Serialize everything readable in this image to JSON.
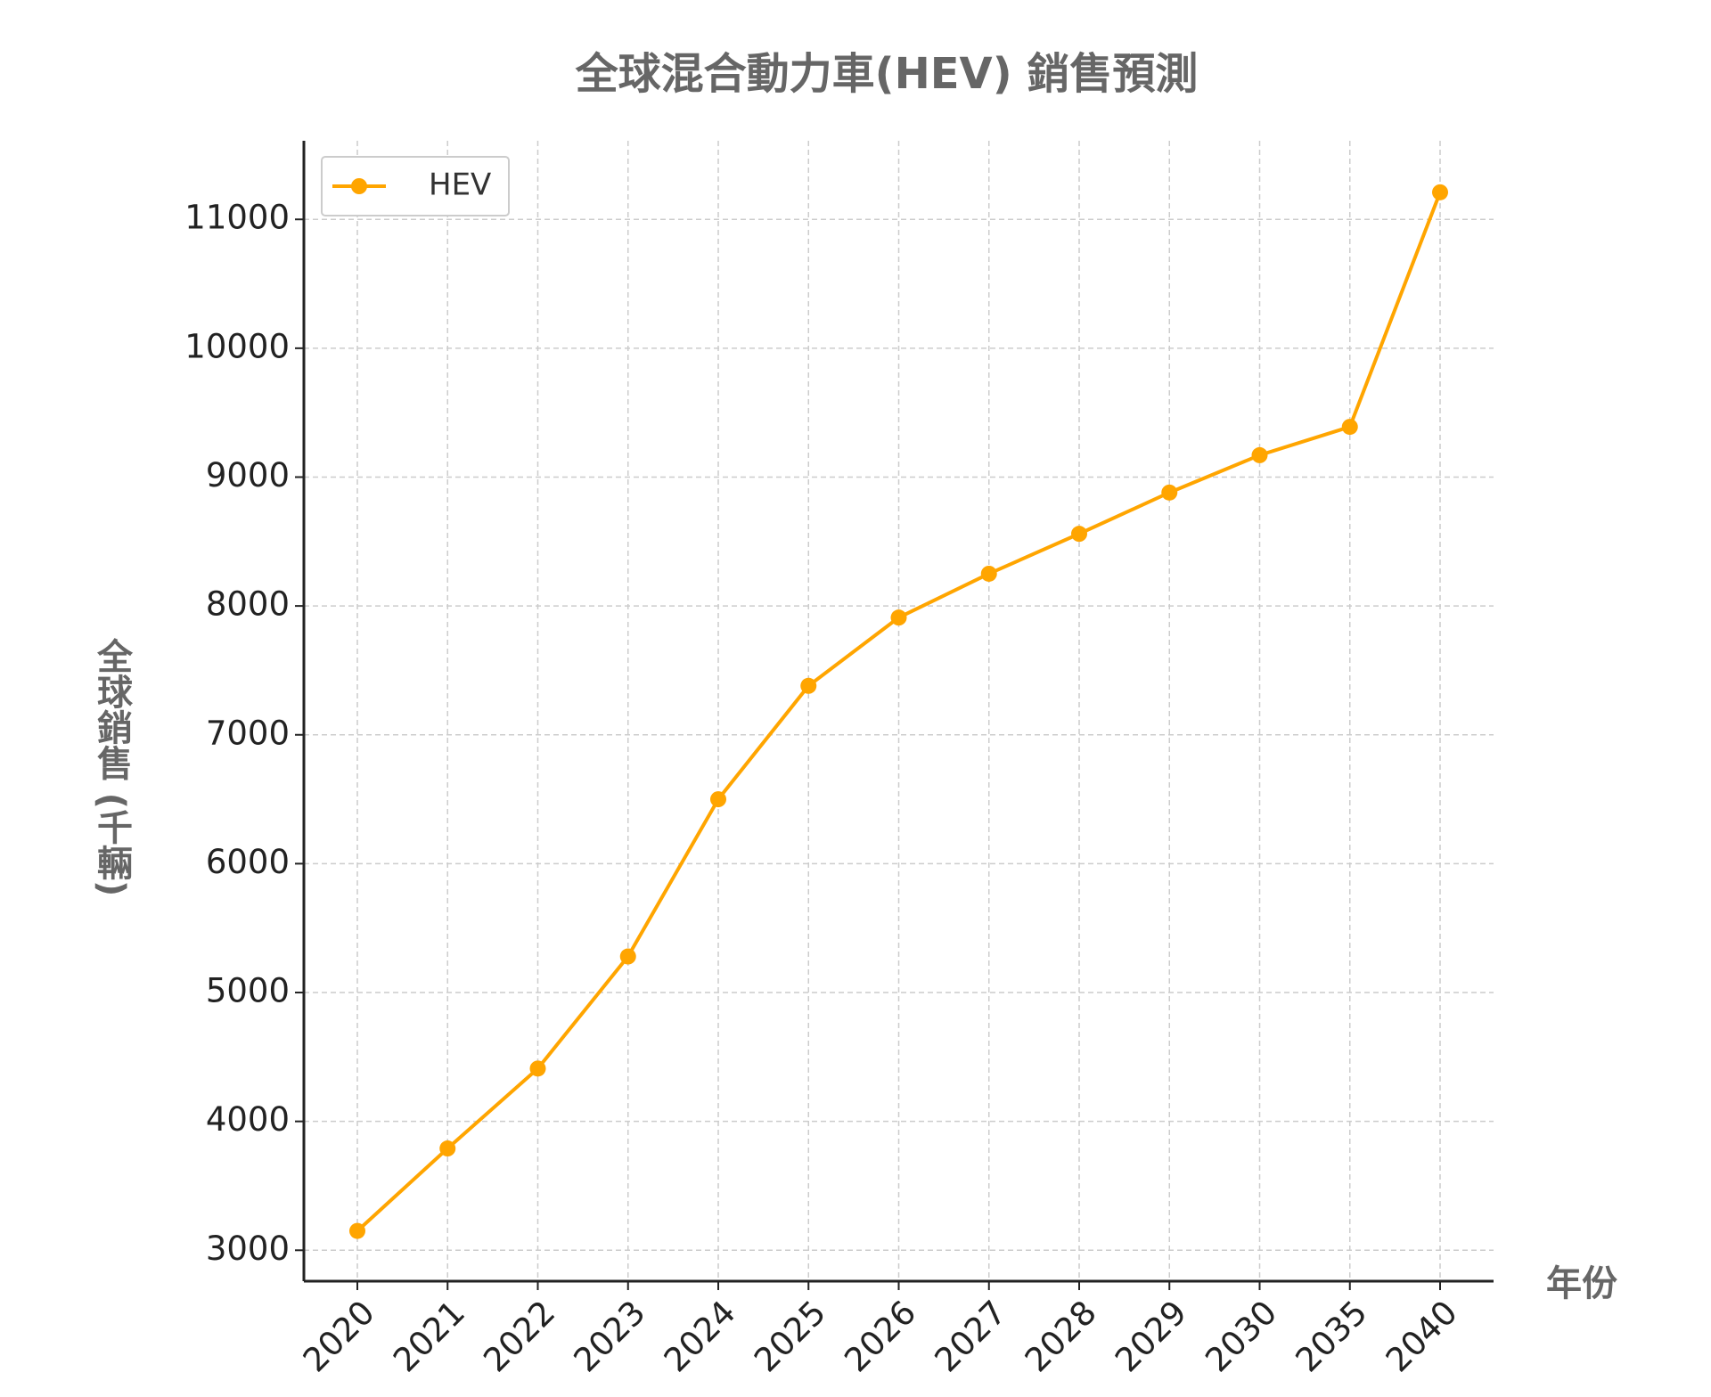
{
  "chart_data": {
    "type": "line",
    "title": "全球混合動力車(HEV) 銷售預測",
    "x_label": "年份",
    "y_label": "全球銷售 (千輛)",
    "categories": [
      "2020",
      "2021",
      "2022",
      "2023",
      "2024",
      "2025",
      "2026",
      "2027",
      "2028",
      "2029",
      "2030",
      "2035",
      "2040"
    ],
    "series": [
      {
        "name": "HEV",
        "color": "#ffa500",
        "values": [
          3150,
          3790,
          4410,
          5280,
          6500,
          7380,
          7910,
          8250,
          8560,
          8880,
          9170,
          9390,
          11210
        ]
      }
    ],
    "ylim": [
      2760,
      11610
    ],
    "yticks": [
      3000,
      4000,
      5000,
      6000,
      7000,
      8000,
      9000,
      10000,
      11000
    ],
    "grid": true,
    "legend": "upper left"
  }
}
